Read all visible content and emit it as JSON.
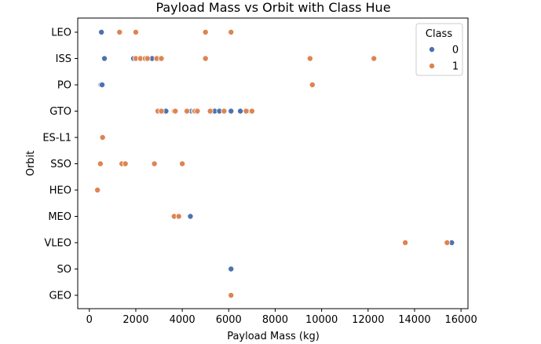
{
  "chart_data": {
    "type": "scatter",
    "title": "Payload Mass vs Orbit with Class Hue",
    "xlabel": "Payload Mass (kg)",
    "ylabel": "Orbit",
    "xlim": [
      -500,
      16300
    ],
    "xticks": [
      0,
      2000,
      4000,
      6000,
      8000,
      10000,
      12000,
      14000,
      16000
    ],
    "categories": [
      "LEO",
      "ISS",
      "PO",
      "GTO",
      "ES-L1",
      "SSO",
      "HEO",
      "MEO",
      "VLEO",
      "SO",
      "GEO"
    ],
    "legend": {
      "title": "Class",
      "position": "top-right"
    },
    "series": [
      {
        "name": "0",
        "color": "#4c72b0",
        "points": [
          [
            500,
            "LEO"
          ],
          [
            520,
            "LEO"
          ],
          [
            650,
            "ISS"
          ],
          [
            1900,
            "ISS"
          ],
          [
            2000,
            "ISS"
          ],
          [
            2200,
            "ISS"
          ],
          [
            2500,
            "ISS"
          ],
          [
            2700,
            "ISS"
          ],
          [
            3000,
            "ISS"
          ],
          [
            500,
            "PO"
          ],
          [
            550,
            "PO"
          ],
          [
            3200,
            "GTO"
          ],
          [
            3300,
            "GTO"
          ],
          [
            4400,
            "GTO"
          ],
          [
            4500,
            "GTO"
          ],
          [
            5300,
            "GTO"
          ],
          [
            5400,
            "GTO"
          ],
          [
            5600,
            "GTO"
          ],
          [
            6100,
            "GTO"
          ],
          [
            6500,
            "GTO"
          ],
          [
            6800,
            "GTO"
          ],
          [
            4350,
            "MEO"
          ],
          [
            15600,
            "VLEO"
          ],
          [
            6100,
            "SO"
          ]
        ]
      },
      {
        "name": "1",
        "color": "#dd8452",
        "points": [
          [
            1300,
            "LEO"
          ],
          [
            2000,
            "LEO"
          ],
          [
            5000,
            "LEO"
          ],
          [
            6100,
            "LEO"
          ],
          [
            2000,
            "ISS"
          ],
          [
            2200,
            "ISS"
          ],
          [
            2400,
            "ISS"
          ],
          [
            2500,
            "ISS"
          ],
          [
            2900,
            "ISS"
          ],
          [
            3100,
            "ISS"
          ],
          [
            5000,
            "ISS"
          ],
          [
            9500,
            "ISS"
          ],
          [
            12250,
            "ISS"
          ],
          [
            9600,
            "PO"
          ],
          [
            2950,
            "GTO"
          ],
          [
            3100,
            "GTO"
          ],
          [
            3650,
            "GTO"
          ],
          [
            3700,
            "GTO"
          ],
          [
            4200,
            "GTO"
          ],
          [
            4550,
            "GTO"
          ],
          [
            4650,
            "GTO"
          ],
          [
            5200,
            "GTO"
          ],
          [
            5800,
            "GTO"
          ],
          [
            6750,
            "GTO"
          ],
          [
            7000,
            "GTO"
          ],
          [
            570,
            "ES-L1"
          ],
          [
            475,
            "SSO"
          ],
          [
            1400,
            "SSO"
          ],
          [
            1550,
            "SSO"
          ],
          [
            2800,
            "SSO"
          ],
          [
            4000,
            "SSO"
          ],
          [
            350,
            "HEO"
          ],
          [
            3650,
            "MEO"
          ],
          [
            3850,
            "MEO"
          ],
          [
            13600,
            "VLEO"
          ],
          [
            15400,
            "VLEO"
          ],
          [
            6100,
            "GEO"
          ]
        ]
      }
    ]
  }
}
